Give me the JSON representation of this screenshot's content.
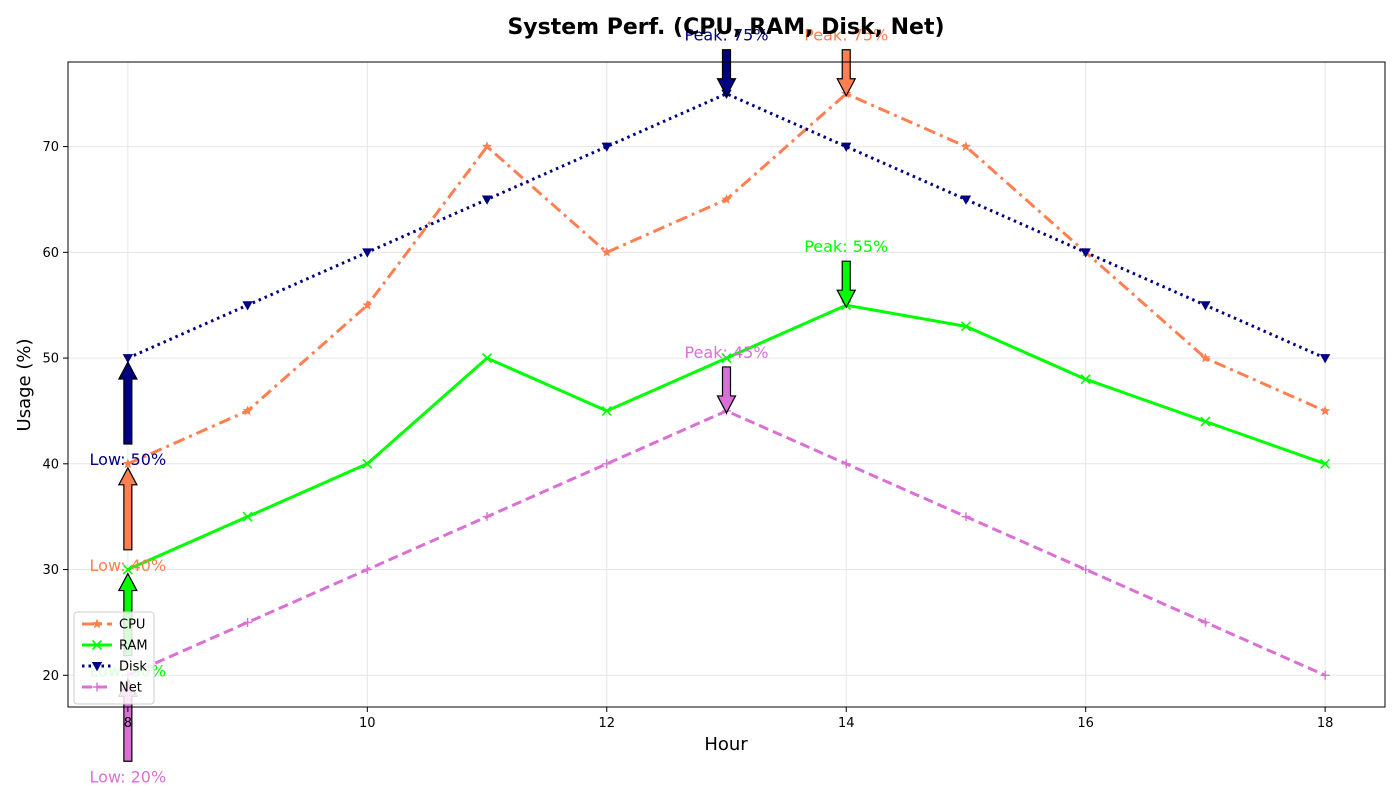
{
  "chart_data": {
    "type": "line",
    "title": "System Perf. (CPU, RAM, Disk, Net)",
    "xlabel": "Hour",
    "ylabel": "Usage (%)",
    "x": [
      8,
      9,
      10,
      11,
      12,
      13,
      14,
      15,
      16,
      17,
      18
    ],
    "xlim": [
      7.5,
      18.5
    ],
    "ylim": [
      17,
      78
    ],
    "xticks": [
      8,
      10,
      12,
      14,
      16,
      18
    ],
    "yticks": [
      20,
      30,
      40,
      50,
      60,
      70
    ],
    "grid": true,
    "legend_position": "lower-left",
    "series": [
      {
        "name": "CPU",
        "color": "#ff7f50",
        "line_style": "dashdot",
        "marker": "star",
        "values": [
          40,
          45,
          55,
          70,
          60,
          65,
          75,
          70,
          60,
          50,
          45
        ]
      },
      {
        "name": "RAM",
        "color": "#00ff00",
        "line_style": "solid",
        "marker": "x",
        "values": [
          30,
          35,
          40,
          50,
          45,
          50,
          55,
          53,
          48,
          44,
          40
        ]
      },
      {
        "name": "Disk",
        "color": "#000080",
        "line_style": "dotted",
        "marker": "triangle-down",
        "values": [
          50,
          55,
          60,
          65,
          70,
          75,
          70,
          65,
          60,
          55,
          50
        ]
      },
      {
        "name": "Net",
        "color": "#da70d6",
        "line_style": "dashed",
        "marker": "plus",
        "values": [
          20,
          25,
          30,
          35,
          40,
          45,
          40,
          35,
          30,
          25,
          20
        ]
      }
    ],
    "annotations": [
      {
        "series": "CPU",
        "kind": "peak",
        "text": "Peak: 75%",
        "x": 14,
        "y": 75
      },
      {
        "series": "CPU",
        "kind": "low",
        "text": "Low: 40%",
        "x": 8,
        "y": 40
      },
      {
        "series": "RAM",
        "kind": "peak",
        "text": "Peak: 55%",
        "x": 14,
        "y": 55
      },
      {
        "series": "RAM",
        "kind": "low",
        "text": "Low: 30%",
        "x": 8,
        "y": 30
      },
      {
        "series": "Disk",
        "kind": "peak",
        "text": "Peak: 75%",
        "x": 13,
        "y": 75
      },
      {
        "series": "Disk",
        "kind": "low",
        "text": "Low: 50%",
        "x": 8,
        "y": 50
      },
      {
        "series": "Net",
        "kind": "peak",
        "text": "Peak: 45%",
        "x": 13,
        "y": 45
      },
      {
        "series": "Net",
        "kind": "low",
        "text": "Low: 20%",
        "x": 8,
        "y": 20
      }
    ]
  }
}
